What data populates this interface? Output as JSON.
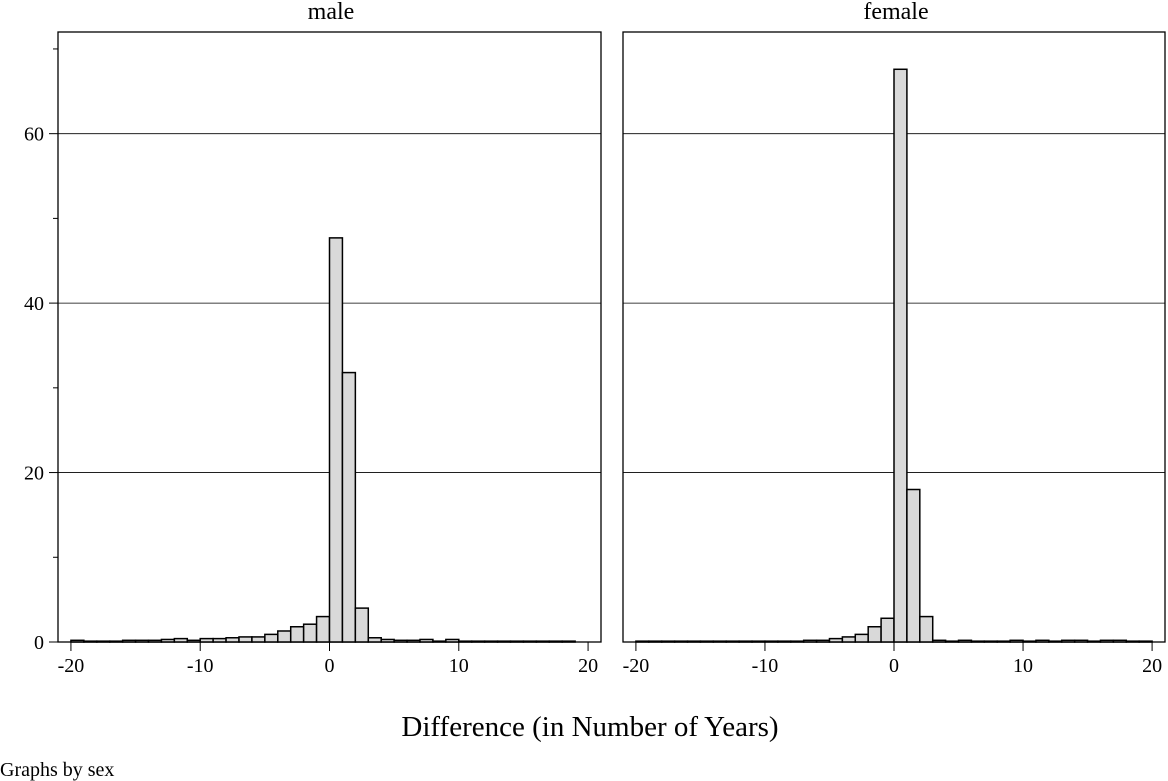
{
  "chart_data": {
    "type": "bar",
    "xlabel": "Difference (in Number of Years)",
    "ylabel": "",
    "note": "Graphs by sex",
    "xlim": [
      -21,
      21
    ],
    "ylim": [
      0,
      72
    ],
    "xticks": [
      -20,
      -10,
      0,
      10,
      20
    ],
    "xtick_labels": [
      "-20",
      "-10",
      "0",
      "10",
      "20"
    ],
    "yticks": [
      0,
      20,
      40,
      60
    ],
    "ytick_labels": [
      "0",
      "20",
      "40",
      "60"
    ],
    "y_minor_ticks": [
      10,
      30,
      50,
      70
    ],
    "bin_width": 1,
    "grid": "horizontal",
    "bar_color": "#d9d9d9",
    "panels": [
      {
        "title": "male",
        "bins": [
          {
            "x": -19.5,
            "y": 0.2
          },
          {
            "x": -18.5,
            "y": 0.1
          },
          {
            "x": -17.5,
            "y": 0.1
          },
          {
            "x": -16.5,
            "y": 0.1
          },
          {
            "x": -15.5,
            "y": 0.2
          },
          {
            "x": -14.5,
            "y": 0.2
          },
          {
            "x": -13.5,
            "y": 0.2
          },
          {
            "x": -12.5,
            "y": 0.3
          },
          {
            "x": -11.5,
            "y": 0.4
          },
          {
            "x": -10.5,
            "y": 0.2
          },
          {
            "x": -9.5,
            "y": 0.4
          },
          {
            "x": -8.5,
            "y": 0.4
          },
          {
            "x": -7.5,
            "y": 0.5
          },
          {
            "x": -6.5,
            "y": 0.6
          },
          {
            "x": -5.5,
            "y": 0.6
          },
          {
            "x": -4.5,
            "y": 0.9
          },
          {
            "x": -3.5,
            "y": 1.3
          },
          {
            "x": -2.5,
            "y": 1.8
          },
          {
            "x": -1.5,
            "y": 2.1
          },
          {
            "x": -0.5,
            "y": 3.0
          },
          {
            "x": 0.5,
            "y": 47.7
          },
          {
            "x": 1.5,
            "y": 31.8
          },
          {
            "x": 2.5,
            "y": 4.0
          },
          {
            "x": 3.5,
            "y": 0.5
          },
          {
            "x": 4.5,
            "y": 0.3
          },
          {
            "x": 5.5,
            "y": 0.2
          },
          {
            "x": 6.5,
            "y": 0.2
          },
          {
            "x": 7.5,
            "y": 0.3
          },
          {
            "x": 8.5,
            "y": 0.1
          },
          {
            "x": 9.5,
            "y": 0.3
          },
          {
            "x": 10.5,
            "y": 0.1
          },
          {
            "x": 11.5,
            "y": 0.1
          },
          {
            "x": 12.5,
            "y": 0.1
          },
          {
            "x": 13.5,
            "y": 0.1
          },
          {
            "x": 14.5,
            "y": 0.1
          },
          {
            "x": 15.5,
            "y": 0.1
          },
          {
            "x": 16.5,
            "y": 0.1
          },
          {
            "x": 17.5,
            "y": 0.1
          },
          {
            "x": 18.5,
            "y": 0.1
          }
        ]
      },
      {
        "title": "female",
        "bins": [
          {
            "x": -19.5,
            "y": 0.1
          },
          {
            "x": -18.5,
            "y": 0.1
          },
          {
            "x": -17.5,
            "y": 0.1
          },
          {
            "x": -16.5,
            "y": 0.1
          },
          {
            "x": -15.5,
            "y": 0.1
          },
          {
            "x": -14.5,
            "y": 0.1
          },
          {
            "x": -13.5,
            "y": 0.1
          },
          {
            "x": -12.5,
            "y": 0.1
          },
          {
            "x": -11.5,
            "y": 0.1
          },
          {
            "x": -10.5,
            "y": 0.1
          },
          {
            "x": -9.5,
            "y": 0.1
          },
          {
            "x": -8.5,
            "y": 0.1
          },
          {
            "x": -7.5,
            "y": 0.1
          },
          {
            "x": -6.5,
            "y": 0.2
          },
          {
            "x": -5.5,
            "y": 0.2
          },
          {
            "x": -4.5,
            "y": 0.4
          },
          {
            "x": -3.5,
            "y": 0.6
          },
          {
            "x": -2.5,
            "y": 0.9
          },
          {
            "x": -1.5,
            "y": 1.8
          },
          {
            "x": -0.5,
            "y": 2.8
          },
          {
            "x": 0.5,
            "y": 67.6
          },
          {
            "x": 1.5,
            "y": 18.0
          },
          {
            "x": 2.5,
            "y": 3.0
          },
          {
            "x": 3.5,
            "y": 0.2
          },
          {
            "x": 4.5,
            "y": 0.1
          },
          {
            "x": 5.5,
            "y": 0.2
          },
          {
            "x": 6.5,
            "y": 0.1
          },
          {
            "x": 7.5,
            "y": 0.1
          },
          {
            "x": 8.5,
            "y": 0.1
          },
          {
            "x": 9.5,
            "y": 0.2
          },
          {
            "x": 10.5,
            "y": 0.1
          },
          {
            "x": 11.5,
            "y": 0.2
          },
          {
            "x": 12.5,
            "y": 0.1
          },
          {
            "x": 13.5,
            "y": 0.2
          },
          {
            "x": 14.5,
            "y": 0.2
          },
          {
            "x": 15.5,
            "y": 0.1
          },
          {
            "x": 16.5,
            "y": 0.2
          },
          {
            "x": 17.5,
            "y": 0.2
          },
          {
            "x": 18.5,
            "y": 0.1
          },
          {
            "x": 19.5,
            "y": 0.1
          }
        ]
      }
    ]
  }
}
